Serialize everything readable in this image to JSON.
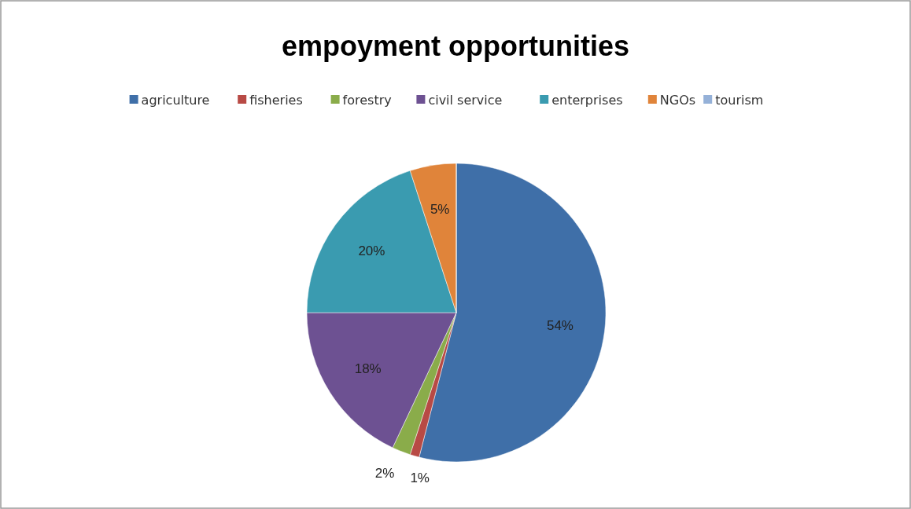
{
  "chart_data": {
    "type": "pie",
    "title": "empoyment opportunities",
    "categories": [
      "agriculture",
      "fisheries",
      "forestry",
      "civil service",
      "enterprises",
      "NGOs",
      "tourism"
    ],
    "values": [
      54,
      1,
      2,
      18,
      20,
      5,
      0
    ],
    "colors": [
      "#3f6fa8",
      "#b84a45",
      "#8aac4a",
      "#6d5192",
      "#3a9bb0",
      "#e0843a",
      "#95b1d8"
    ],
    "value_labels": [
      "54%",
      "1%",
      "2%",
      "18%",
      "20%",
      "5%",
      null
    ],
    "legend": "top"
  }
}
